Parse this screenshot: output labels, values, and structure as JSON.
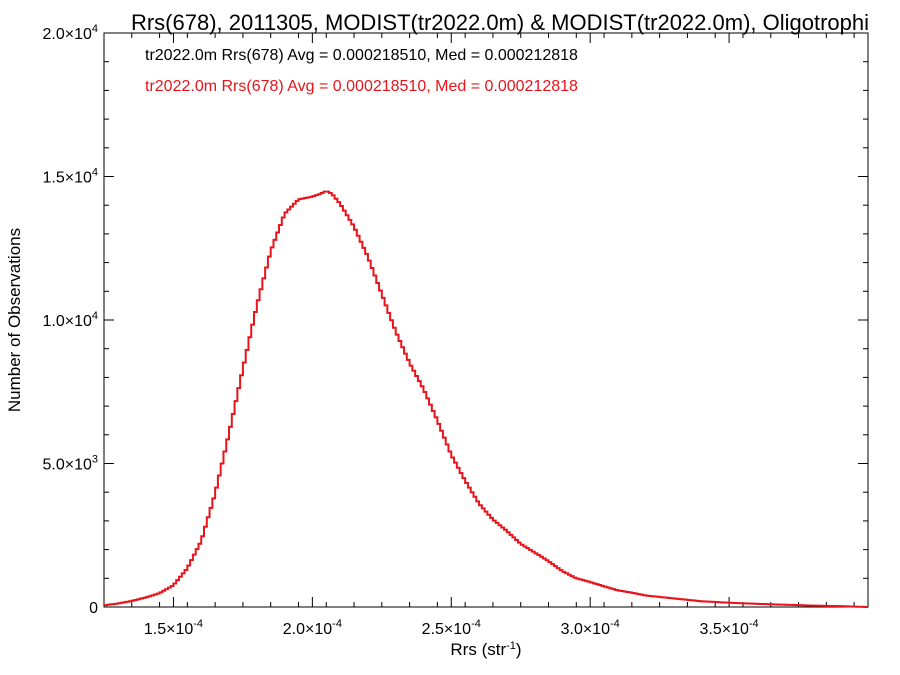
{
  "chart_data": {
    "type": "line",
    "title": "Rrs(678), 2011305, MODIST(tr2022.0m) & MODIST(tr2022.0m), Oligotrophi",
    "xlabel": "Rrs (str",
    "xlabel_sup": "-1",
    "xlabel_end": ")",
    "ylabel": "Number of Observations",
    "xlim": [
      0.000125,
      0.0004
    ],
    "ylim": [
      0,
      20000
    ],
    "grid": false,
    "legend_position": "top-left",
    "x_ticks": [
      {
        "value": 0.00015,
        "mant": "1.5",
        "exp": "-4"
      },
      {
        "value": 0.0002,
        "mant": "2.0",
        "exp": "-4"
      },
      {
        "value": 0.00025,
        "mant": "2.5",
        "exp": "-4"
      },
      {
        "value": 0.0003,
        "mant": "3.0",
        "exp": "-4"
      },
      {
        "value": 0.00035,
        "mant": "3.5",
        "exp": "-4"
      }
    ],
    "y_ticks": [
      {
        "value": 0,
        "mant": "0",
        "exp": ""
      },
      {
        "value": 5000,
        "mant": "5.0",
        "exp": "3"
      },
      {
        "value": 10000,
        "mant": "1.0",
        "exp": "4"
      },
      {
        "value": 15000,
        "mant": "1.5",
        "exp": "4"
      },
      {
        "value": 20000,
        "mant": "2.0",
        "exp": "4"
      }
    ],
    "annotations": [
      {
        "text": "tr2022.0m Rrs(678) Avg = 0.000218510, Med = 0.000212818",
        "color": "#000000"
      },
      {
        "text": "tr2022.0m Rrs(678) Avg = 0.000218510, Med = 0.000212818",
        "color": "#e8141b"
      }
    ],
    "series": [
      {
        "color": "#e8141b",
        "x": [
          0.000125,
          0.00013,
          0.000135,
          0.00014,
          0.000145,
          0.00015,
          0.000155,
          0.00016,
          0.000165,
          0.00017,
          0.000175,
          0.00018,
          0.000185,
          0.00019,
          0.000195,
          0.0002,
          0.000203,
          0.000205,
          0.000207,
          0.00021,
          0.000215,
          0.00022,
          0.000225,
          0.00023,
          0.000235,
          0.00024,
          0.000245,
          0.00025,
          0.000255,
          0.00026,
          0.000265,
          0.00027,
          0.000275,
          0.00028,
          0.000285,
          0.00029,
          0.000295,
          0.0003,
          0.000305,
          0.00031,
          0.000315,
          0.00032,
          0.00033,
          0.00034,
          0.00035,
          0.00036,
          0.00037,
          0.00038,
          0.00039,
          0.0004
        ],
        "y": [
          60,
          120,
          210,
          330,
          480,
          760,
          1350,
          2300,
          3950,
          6050,
          8300,
          10500,
          12400,
          13700,
          14200,
          14300,
          14400,
          14500,
          14400,
          14050,
          13250,
          12200,
          10900,
          9600,
          8500,
          7600,
          6500,
          5300,
          4400,
          3600,
          3050,
          2650,
          2200,
          1900,
          1600,
          1250,
          1000,
          870,
          720,
          580,
          500,
          400,
          300,
          200,
          150,
          110,
          80,
          50,
          30,
          0
        ]
      }
    ]
  }
}
